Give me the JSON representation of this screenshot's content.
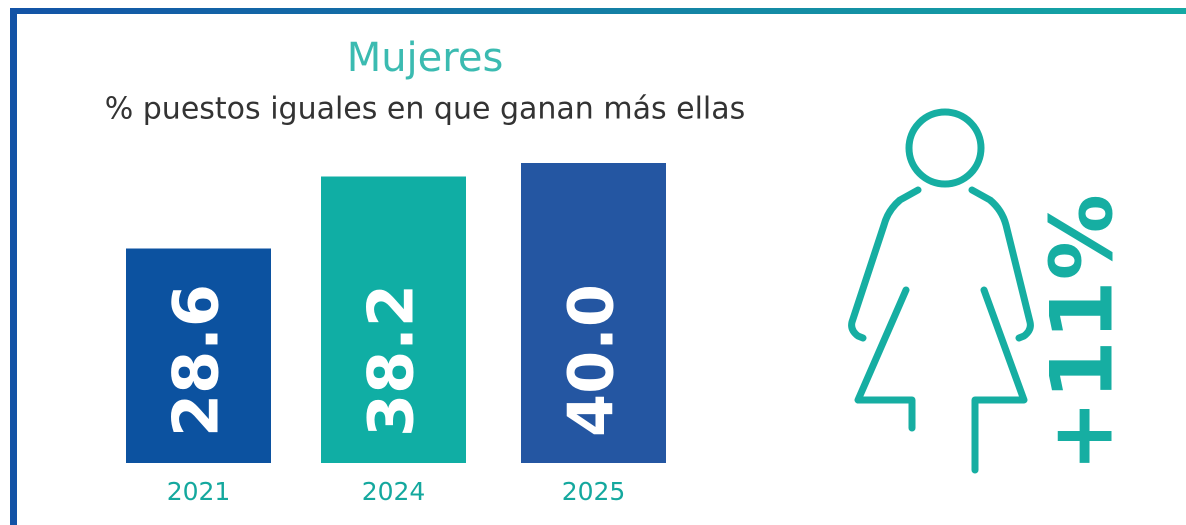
{
  "chart_data": {
    "type": "bar",
    "title": "Mujeres",
    "subtitle": "% puestos iguales en que ganan más ellas",
    "categories": [
      "2021",
      "2024",
      "2025"
    ],
    "values": [
      28.6,
      38.2,
      40.0
    ],
    "value_labels": [
      "28.6",
      "38.2",
      "40.0"
    ],
    "colors": [
      "#0c52a0",
      "#10aea4",
      "#2456a2"
    ],
    "annotation": "+11%"
  }
}
